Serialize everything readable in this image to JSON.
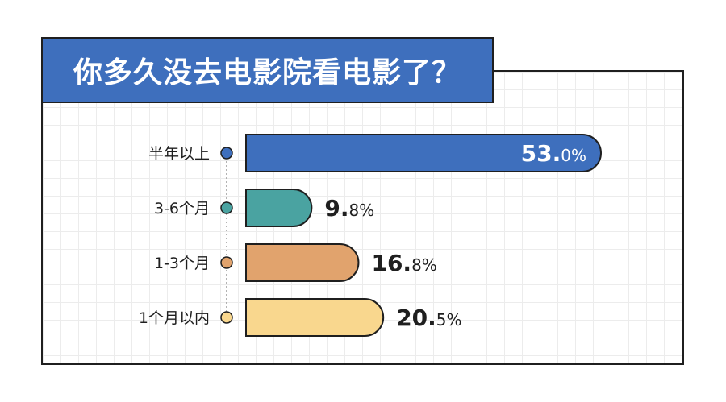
{
  "title": "你多久没去电影院看电影了？",
  "colors": {
    "title_bg": "#3e6fbd",
    "frame": "#1f1f1f"
  },
  "chart_data": {
    "type": "bar",
    "orientation": "horizontal",
    "title": "你多久没去电影院看电影了？",
    "categories": [
      "半年以上",
      "3-6个月",
      "1-3个月",
      "1个月以内"
    ],
    "values": [
      53.0,
      9.8,
      16.8,
      20.5
    ],
    "value_labels": [
      {
        "main": "53.",
        "dec": "0%"
      },
      {
        "main": "9.",
        "dec": "8%"
      },
      {
        "main": "16.",
        "dec": "8%"
      },
      {
        "main": "20.",
        "dec": "5%"
      }
    ],
    "unit": "%",
    "colors": [
      "#3e6fbd",
      "#4aa3a1",
      "#e1a36d",
      "#f9d78e"
    ],
    "xlim": [
      0,
      53
    ]
  }
}
